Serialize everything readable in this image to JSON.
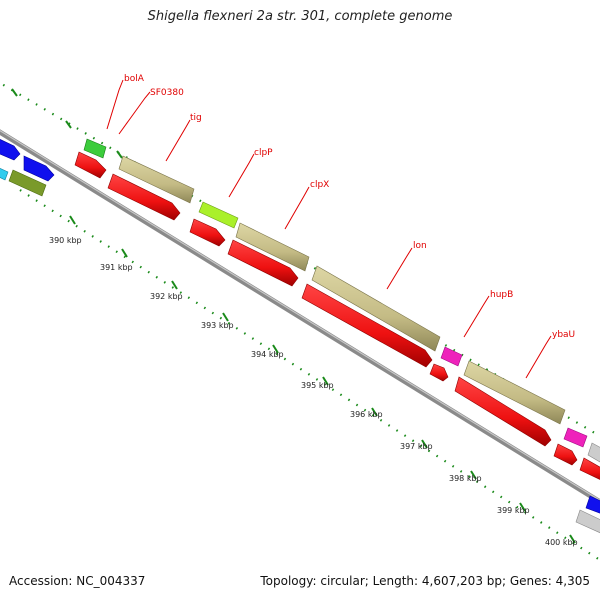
{
  "map": {
    "title": "Shigella flexneri 2a str. 301, complete genome",
    "accession": "Accession: NC_004337",
    "summary": "Topology: circular; Length: 4,607,203 bp; Genes: 4,305"
  },
  "colors": {
    "backbone": "#8a8a8a",
    "tick": "#1a8a1a",
    "cds": "#ee1111",
    "cds_shadow": "#a00000",
    "khaki": "#c8c08a",
    "label": "#e00000"
  },
  "gene_labels": [
    "bolA",
    "SF0380",
    "tig",
    "clpP",
    "clpX",
    "lon",
    "hupB",
    "ybaU"
  ],
  "ruler_labels": [
    "390 kbp",
    "391 kbp",
    "392 kbp",
    "393 kbp",
    "394 kbp",
    "395 kbp",
    "396 kbp",
    "397 kbp",
    "398 kbp",
    "399 kbp",
    "400 kbp"
  ]
}
